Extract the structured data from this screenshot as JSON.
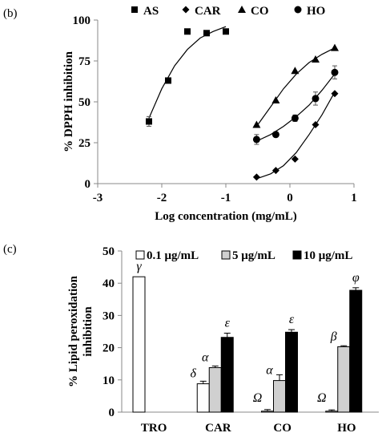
{
  "panel_b_label": "(b)",
  "panel_c_label": "(c)",
  "chart_data": [
    {
      "type": "scatter",
      "title": "",
      "xlabel": "Log concentration (mg/mL)",
      "ylabel": "% DPPH inhibition",
      "xlim": [
        -3,
        1
      ],
      "ylim": [
        0,
        100
      ],
      "xticks": [
        "-3",
        "-2",
        "-1",
        "0",
        "1"
      ],
      "yticks": [
        "0",
        "25",
        "50",
        "75",
        "100"
      ],
      "grid": false,
      "legend_position": "top",
      "series": [
        {
          "name": "AS",
          "marker": "square",
          "x": [
            -2.2,
            -1.9,
            -1.6,
            -1.3,
            -1.0
          ],
          "y": [
            38,
            63,
            93,
            92,
            93
          ],
          "err": [
            3,
            0,
            0,
            0,
            0
          ],
          "trend_x": [
            -2.2,
            -2.0,
            -1.8,
            -1.6,
            -1.4,
            -1.2,
            -1.0
          ],
          "trend_y": [
            40,
            58,
            72,
            82,
            89,
            93,
            96
          ]
        },
        {
          "name": "CAR",
          "marker": "diamond",
          "x": [
            -0.52,
            -0.22,
            0.08,
            0.4,
            0.7
          ],
          "y": [
            4,
            8,
            15,
            36,
            55
          ],
          "err": [
            0,
            0,
            0,
            0,
            0
          ],
          "trend_x": [
            -0.52,
            -0.3,
            -0.1,
            0.1,
            0.3,
            0.5,
            0.7
          ],
          "trend_y": [
            3,
            6,
            11,
            19,
            30,
            42,
            56
          ]
        },
        {
          "name": "CO",
          "marker": "triangle",
          "x": [
            -0.52,
            -0.22,
            0.08,
            0.4,
            0.7
          ],
          "y": [
            36,
            51,
            69,
            76,
            83
          ],
          "err": [
            0,
            0,
            0,
            0,
            0
          ],
          "trend_x": [
            -0.52,
            -0.3,
            -0.1,
            0.1,
            0.3,
            0.5,
            0.7
          ],
          "trend_y": [
            35,
            47,
            58,
            67,
            74,
            79,
            83
          ]
        },
        {
          "name": "HO",
          "marker": "circle",
          "x": [
            -0.52,
            -0.22,
            0.08,
            0.4,
            0.7
          ],
          "y": [
            27,
            30,
            40,
            52,
            68
          ],
          "err": [
            3,
            0,
            2,
            4,
            4
          ],
          "trend_x": [
            -0.52,
            -0.3,
            -0.1,
            0.1,
            0.3,
            0.5,
            0.7
          ],
          "trend_y": [
            26,
            30,
            35,
            41,
            48,
            57,
            67
          ]
        }
      ]
    },
    {
      "type": "bar",
      "title": "",
      "xlabel": "",
      "ylabel": "% Lipid peroxidation inhibition",
      "ylim": [
        0,
        50
      ],
      "yticks": [
        "0",
        "10",
        "20",
        "30",
        "40",
        "50"
      ],
      "grid": false,
      "legend_position": "top",
      "categories": [
        "TRO",
        "CAR",
        "CO",
        "HO"
      ],
      "series": [
        {
          "name": "0.1 μg/mL",
          "fill": "#ffffff",
          "values": [
            42,
            8.8,
            0.3,
            0.3
          ],
          "err": [
            0,
            0.8,
            0.5,
            0.4
          ],
          "annotations": [
            "γ",
            "δ",
            "Ω",
            "Ω"
          ]
        },
        {
          "name": "5 μg/mL",
          "fill": "#d0d0d0",
          "values": [
            0,
            13.8,
            9.8,
            20.3
          ],
          "err": [
            0,
            0.5,
            1.8,
            0.3
          ],
          "annotations": [
            "",
            "α",
            "α",
            "β"
          ]
        },
        {
          "name": "10 μg/mL",
          "fill": "#000000",
          "values": [
            0,
            23.2,
            24.8,
            37.8
          ],
          "err": [
            0,
            1.3,
            0.8,
            0.8
          ],
          "annotations": [
            "",
            "ε",
            "ε",
            "φ"
          ]
        }
      ]
    }
  ]
}
